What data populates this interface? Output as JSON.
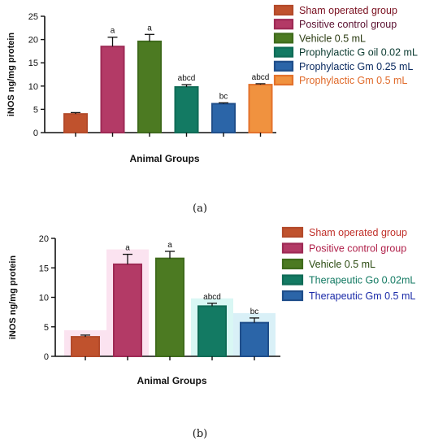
{
  "chart_data": [
    {
      "panel_label": "(a)",
      "type": "bar",
      "ylabel": "iNOS ng/mg protein",
      "xlabel": "Animal Groups",
      "ylim": [
        0,
        25
      ],
      "yticks": [
        0,
        5,
        10,
        15,
        20,
        25
      ],
      "grid": false,
      "legend_position": "right",
      "series": [
        {
          "name": "Sham operated group",
          "value": 4.0,
          "error": 0.3,
          "label": "",
          "color": "#c0522d",
          "legend_color": "#b34a2a"
        },
        {
          "name": "Positive control group",
          "value": 18.5,
          "error": 2.0,
          "label": "a",
          "color": "#b33a66",
          "legend_color": "#9e2a55"
        },
        {
          "name": "Vehicle 0.5 mL",
          "value": 19.6,
          "error": 1.5,
          "label": "a",
          "color": "#4c7a22",
          "legend_color": "#3f6b1c"
        },
        {
          "name": "Prophylactic G oil 0.02 mL",
          "value": 9.8,
          "error": 0.5,
          "label": "abcd",
          "color": "#137a63",
          "legend_color": "#0f6b56"
        },
        {
          "name": "Prophylactic Gm 0.25 mL",
          "value": 6.2,
          "error": 0.2,
          "label": "bc",
          "color": "#2b65a8",
          "legend_color": "#1f4e8a"
        },
        {
          "name": "Prophylactic Gm  0.5 mL",
          "value": 10.3,
          "error": 0.2,
          "label": "abcd",
          "color": "#f0923f",
          "legend_color": "#e3722c"
        }
      ],
      "legend_text_colors": [
        "#7a1020",
        "#5a1030",
        "#2a3a10",
        "#0a3a30",
        "#0a2a60",
        "#e06a2a"
      ]
    },
    {
      "panel_label": "(b)",
      "type": "bar",
      "ylabel": "iNOS ng/mg protein",
      "xlabel": "Animal Groups",
      "ylim": [
        0,
        20
      ],
      "yticks": [
        0,
        5,
        10,
        15,
        20
      ],
      "grid": false,
      "legend_position": "right",
      "series": [
        {
          "name": "Sham operated group",
          "value": 3.3,
          "error": 0.3,
          "label": "",
          "color": "#c0522d",
          "legend_color": "#b34a2a",
          "glow": "#fbe3f0"
        },
        {
          "name": "Positive control group",
          "value": 15.6,
          "error": 1.7,
          "label": "a",
          "color": "#b33a66",
          "legend_color": "#9e2a55",
          "glow": "#fbe3f0"
        },
        {
          "name": "Vehicle 0.5 mL",
          "value": 16.6,
          "error": 1.2,
          "label": "a",
          "color": "#4c7a22",
          "legend_color": "#3f6b1c",
          "glow": "#ffffff"
        },
        {
          "name": "Therapeutic Go 0.02mL",
          "value": 8.5,
          "error": 0.5,
          "label": "abcd",
          "color": "#137a63",
          "legend_color": "#0f6b56",
          "glow": "#d9f7f4"
        },
        {
          "name": "Therapeutic Gm 0.5 mL",
          "value": 5.7,
          "error": 0.8,
          "label": "bc",
          "color": "#2b65a8",
          "legend_color": "#1f4e8a",
          "glow": "#d9f0f7"
        }
      ],
      "legend_text_colors": [
        "#c0302a",
        "#b0204a",
        "#2a4a10",
        "#137a63",
        "#1a2aa8"
      ]
    }
  ]
}
